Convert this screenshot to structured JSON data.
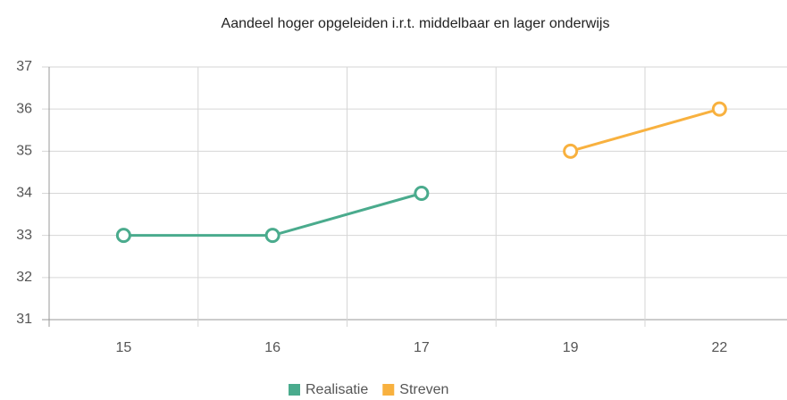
{
  "chart_data": {
    "type": "line",
    "title": "Aandeel hoger opgeleiden i.r.t. middelbaar en lager onderwijs",
    "categories": [
      "15",
      "16",
      "17",
      "19",
      "22"
    ],
    "series": [
      {
        "name": "Realisatie",
        "color": "#4aab8d",
        "values": [
          33,
          33,
          34,
          null,
          null
        ]
      },
      {
        "name": "Streven",
        "color": "#f8b13f",
        "values": [
          null,
          null,
          null,
          35,
          36
        ]
      }
    ],
    "ylim": [
      31,
      37
    ],
    "yticks": [
      31,
      32,
      33,
      34,
      35,
      36,
      37
    ],
    "grid": true,
    "legend": "bottom"
  }
}
